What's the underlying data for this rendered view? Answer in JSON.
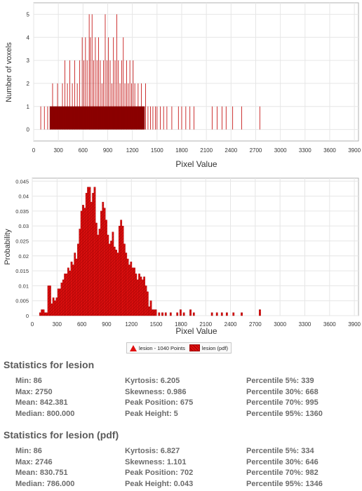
{
  "chart_data": [
    {
      "type": "bar",
      "xlabel": "Pixel Value",
      "ylabel": "Number of voxels",
      "xlim": [
        0,
        3950
      ],
      "ylim": [
        -0.5,
        5.5
      ],
      "xticks": [
        0,
        300,
        600,
        900,
        1200,
        1500,
        1800,
        2100,
        2400,
        2700,
        3000,
        3300,
        3600,
        3900
      ],
      "yticks": [
        0,
        1,
        2,
        3,
        4,
        5
      ],
      "grid": true,
      "series": [
        {
          "values": [
            {
              "x": 86,
              "y": 1
            },
            {
              "x": 130,
              "y": 1
            },
            {
              "x": 170,
              "y": 1
            },
            {
              "x": 200,
              "y": 1
            },
            {
              "x": 230,
              "y": 2
            },
            {
              "x": 260,
              "y": 1
            },
            {
              "x": 290,
              "y": 2
            },
            {
              "x": 320,
              "y": 1
            },
            {
              "x": 350,
              "y": 2
            },
            {
              "x": 380,
              "y": 3
            },
            {
              "x": 410,
              "y": 2
            },
            {
              "x": 440,
              "y": 3
            },
            {
              "x": 470,
              "y": 2
            },
            {
              "x": 500,
              "y": 3
            },
            {
              "x": 530,
              "y": 2
            },
            {
              "x": 560,
              "y": 3
            },
            {
              "x": 590,
              "y": 4
            },
            {
              "x": 610,
              "y": 3
            },
            {
              "x": 630,
              "y": 4
            },
            {
              "x": 650,
              "y": 3
            },
            {
              "x": 675,
              "y": 5
            },
            {
              "x": 690,
              "y": 4
            },
            {
              "x": 710,
              "y": 5
            },
            {
              "x": 730,
              "y": 3
            },
            {
              "x": 750,
              "y": 4
            },
            {
              "x": 770,
              "y": 3
            },
            {
              "x": 790,
              "y": 4
            },
            {
              "x": 810,
              "y": 3
            },
            {
              "x": 830,
              "y": 2
            },
            {
              "x": 850,
              "y": 3
            },
            {
              "x": 870,
              "y": 5
            },
            {
              "x": 890,
              "y": 3
            },
            {
              "x": 910,
              "y": 4
            },
            {
              "x": 930,
              "y": 3
            },
            {
              "x": 950,
              "y": 2
            },
            {
              "x": 970,
              "y": 4
            },
            {
              "x": 990,
              "y": 3
            },
            {
              "x": 1010,
              "y": 5
            },
            {
              "x": 1030,
              "y": 3
            },
            {
              "x": 1050,
              "y": 2
            },
            {
              "x": 1070,
              "y": 3
            },
            {
              "x": 1090,
              "y": 4
            },
            {
              "x": 1110,
              "y": 2
            },
            {
              "x": 1130,
              "y": 3
            },
            {
              "x": 1150,
              "y": 2
            },
            {
              "x": 1170,
              "y": 3
            },
            {
              "x": 1190,
              "y": 2
            },
            {
              "x": 1210,
              "y": 3
            },
            {
              "x": 1230,
              "y": 2
            },
            {
              "x": 1250,
              "y": 1
            },
            {
              "x": 1270,
              "y": 2
            },
            {
              "x": 1290,
              "y": 1
            },
            {
              "x": 1310,
              "y": 2
            },
            {
              "x": 1330,
              "y": 1
            },
            {
              "x": 1360,
              "y": 2
            },
            {
              "x": 1390,
              "y": 1
            },
            {
              "x": 1420,
              "y": 1
            },
            {
              "x": 1450,
              "y": 1
            },
            {
              "x": 1480,
              "y": 1
            },
            {
              "x": 1500,
              "y": 1
            },
            {
              "x": 1540,
              "y": 1
            },
            {
              "x": 1580,
              "y": 1
            },
            {
              "x": 1620,
              "y": 1
            },
            {
              "x": 1680,
              "y": 1
            },
            {
              "x": 1760,
              "y": 1
            },
            {
              "x": 1800,
              "y": 1
            },
            {
              "x": 1850,
              "y": 1
            },
            {
              "x": 1900,
              "y": 1
            },
            {
              "x": 1950,
              "y": 1
            },
            {
              "x": 2170,
              "y": 1
            },
            {
              "x": 2230,
              "y": 1
            },
            {
              "x": 2290,
              "y": 1
            },
            {
              "x": 2340,
              "y": 1
            },
            {
              "x": 2420,
              "y": 1
            },
            {
              "x": 2530,
              "y": 1
            },
            {
              "x": 2750,
              "y": 1
            }
          ]
        }
      ]
    },
    {
      "type": "bar",
      "xlabel": "Pixel Value",
      "ylabel": "Probability",
      "xlim": [
        0,
        3950
      ],
      "ylim": [
        0,
        0.046
      ],
      "xticks": [
        0,
        300,
        600,
        900,
        1200,
        1500,
        1800,
        2100,
        2400,
        2700,
        3000,
        3300,
        3600,
        3900
      ],
      "yticks": [
        0,
        0.005,
        0.01,
        0.015,
        0.02,
        0.025,
        0.03,
        0.035,
        0.04,
        0.045
      ],
      "ytick_labels": [
        "0",
        "0.005",
        "0.01",
        "0.015",
        "0.02",
        "0.025",
        "0.03",
        "0.035",
        "0.04",
        "0.045"
      ],
      "grid": true,
      "legend": [
        "lesion - 1040 Points",
        "lesion (pdf)"
      ],
      "legend_position": "bottom-center",
      "bin_width": 20,
      "bins": [
        {
          "x": 86,
          "y": 0.001
        },
        {
          "x": 106,
          "y": 0.002
        },
        {
          "x": 126,
          "y": 0.002
        },
        {
          "x": 146,
          "y": 0.001
        },
        {
          "x": 166,
          "y": 0.001
        },
        {
          "x": 186,
          "y": 0.01
        },
        {
          "x": 206,
          "y": 0.01
        },
        {
          "x": 226,
          "y": 0.004
        },
        {
          "x": 246,
          "y": 0.006
        },
        {
          "x": 266,
          "y": 0.005
        },
        {
          "x": 286,
          "y": 0.006
        },
        {
          "x": 306,
          "y": 0.009
        },
        {
          "x": 326,
          "y": 0.009
        },
        {
          "x": 346,
          "y": 0.011
        },
        {
          "x": 366,
          "y": 0.012
        },
        {
          "x": 386,
          "y": 0.014
        },
        {
          "x": 406,
          "y": 0.014
        },
        {
          "x": 426,
          "y": 0.016
        },
        {
          "x": 446,
          "y": 0.015
        },
        {
          "x": 466,
          "y": 0.018
        },
        {
          "x": 486,
          "y": 0.017
        },
        {
          "x": 506,
          "y": 0.021
        },
        {
          "x": 526,
          "y": 0.019
        },
        {
          "x": 546,
          "y": 0.024
        },
        {
          "x": 566,
          "y": 0.029
        },
        {
          "x": 586,
          "y": 0.035
        },
        {
          "x": 606,
          "y": 0.037
        },
        {
          "x": 626,
          "y": 0.036
        },
        {
          "x": 646,
          "y": 0.041
        },
        {
          "x": 666,
          "y": 0.043
        },
        {
          "x": 686,
          "y": 0.043
        },
        {
          "x": 706,
          "y": 0.038
        },
        {
          "x": 726,
          "y": 0.041
        },
        {
          "x": 746,
          "y": 0.043
        },
        {
          "x": 766,
          "y": 0.031
        },
        {
          "x": 786,
          "y": 0.027
        },
        {
          "x": 806,
          "y": 0.029
        },
        {
          "x": 826,
          "y": 0.035
        },
        {
          "x": 846,
          "y": 0.038
        },
        {
          "x": 866,
          "y": 0.036
        },
        {
          "x": 886,
          "y": 0.032
        },
        {
          "x": 906,
          "y": 0.027
        },
        {
          "x": 926,
          "y": 0.024
        },
        {
          "x": 946,
          "y": 0.025
        },
        {
          "x": 966,
          "y": 0.028
        },
        {
          "x": 986,
          "y": 0.023
        },
        {
          "x": 1006,
          "y": 0.022
        },
        {
          "x": 1026,
          "y": 0.021
        },
        {
          "x": 1046,
          "y": 0.03
        },
        {
          "x": 1066,
          "y": 0.032
        },
        {
          "x": 1086,
          "y": 0.03
        },
        {
          "x": 1106,
          "y": 0.024
        },
        {
          "x": 1126,
          "y": 0.021
        },
        {
          "x": 1146,
          "y": 0.019
        },
        {
          "x": 1166,
          "y": 0.017
        },
        {
          "x": 1186,
          "y": 0.018
        },
        {
          "x": 1206,
          "y": 0.016
        },
        {
          "x": 1226,
          "y": 0.016
        },
        {
          "x": 1246,
          "y": 0.014
        },
        {
          "x": 1266,
          "y": 0.012
        },
        {
          "x": 1286,
          "y": 0.014
        },
        {
          "x": 1306,
          "y": 0.013
        },
        {
          "x": 1326,
          "y": 0.012
        },
        {
          "x": 1346,
          "y": 0.013
        },
        {
          "x": 1366,
          "y": 0.01
        },
        {
          "x": 1386,
          "y": 0.008
        },
        {
          "x": 1406,
          "y": 0.003
        },
        {
          "x": 1426,
          "y": 0.005
        },
        {
          "x": 1446,
          "y": 0.002
        },
        {
          "x": 1466,
          "y": 0.002
        },
        {
          "x": 1486,
          "y": 0.002
        },
        {
          "x": 1526,
          "y": 0.001
        },
        {
          "x": 1566,
          "y": 0.001
        },
        {
          "x": 1606,
          "y": 0.001
        },
        {
          "x": 1666,
          "y": 0.001
        },
        {
          "x": 1746,
          "y": 0.001
        },
        {
          "x": 1786,
          "y": 0.002
        },
        {
          "x": 1826,
          "y": 0.001
        },
        {
          "x": 1906,
          "y": 0.002
        },
        {
          "x": 1946,
          "y": 0.001
        },
        {
          "x": 2166,
          "y": 0.001
        },
        {
          "x": 2226,
          "y": 0.001
        },
        {
          "x": 2286,
          "y": 0.001
        },
        {
          "x": 2346,
          "y": 0.001
        },
        {
          "x": 2426,
          "y": 0.001
        },
        {
          "x": 2526,
          "y": 0.001
        },
        {
          "x": 2746,
          "y": 0.002
        }
      ]
    }
  ],
  "stats": [
    {
      "title": "Statistics for lesion",
      "columns": [
        [
          "Min: 86",
          "Max: 2750",
          "Mean: 842.381",
          "Median: 800.000"
        ],
        [
          "Kyrtosis: 6.205",
          "Skewness: 0.986",
          "Peak Position: 675",
          "Peak Height: 5"
        ],
        [
          "Percentile 5%: 339",
          "Percentile 30%: 668",
          "Percentile 70%: 995",
          "Percentile 95%: 1360"
        ]
      ]
    },
    {
      "title": "Statistics for lesion (pdf)",
      "columns": [
        [
          "Min: 86",
          "Max: 2746",
          "Mean: 830.751",
          "Median: 786.000"
        ],
        [
          "Kyrtosis: 6.827",
          "Skewness: 1.101",
          "Peak Position: 702",
          "Peak Height: 0.043"
        ],
        [
          "Percentile 5%: 334",
          "Percentile 30%: 646",
          "Percentile 70%: 982",
          "Percentile 95%: 1346"
        ]
      ]
    }
  ],
  "colors": {
    "bar_dark": "#8b0000",
    "bar_line": "#c00000",
    "bar_fill": "#e01010",
    "bar_hatch": "#a00000",
    "grid": "#e6e6e6",
    "axis": "#555555"
  }
}
